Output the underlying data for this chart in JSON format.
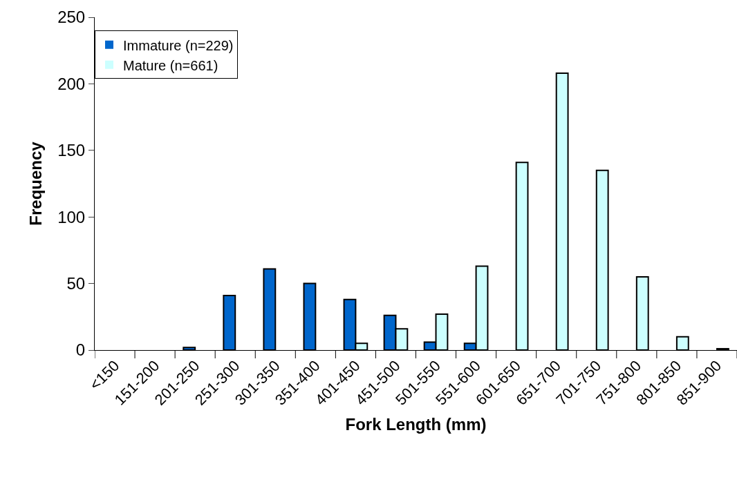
{
  "chart_data": {
    "type": "bar",
    "xlabel": "Fork Length (mm)",
    "ylabel": "Frequency",
    "categories": [
      "<150",
      "151-200",
      "201-250",
      "251-300",
      "301-350",
      "351-400",
      "401-450",
      "451-500",
      "501-550",
      "551-600",
      "601-650",
      "651-700",
      "701-750",
      "751-800",
      "801-850",
      "851-900"
    ],
    "series": [
      {
        "name": "Immature (n=229)",
        "color": "#0066cc",
        "values": [
          0,
          0,
          2,
          41,
          61,
          50,
          38,
          26,
          6,
          5,
          0,
          0,
          0,
          0,
          0,
          0
        ]
      },
      {
        "name": "Mature (n=661)",
        "color": "#ccffff",
        "values": [
          0,
          0,
          0,
          0,
          0,
          0,
          5,
          16,
          27,
          63,
          141,
          208,
          135,
          55,
          10,
          1
        ]
      }
    ],
    "ylim": [
      0,
      250
    ],
    "yticks": [
      0,
      50,
      100,
      150,
      200,
      250
    ],
    "legend": "top left"
  }
}
